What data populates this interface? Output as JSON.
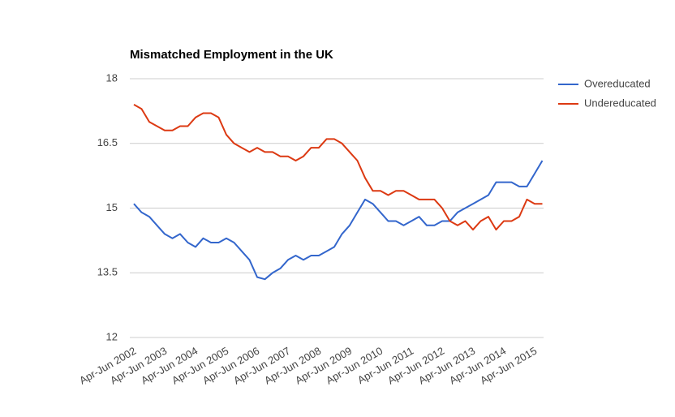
{
  "chart_data": {
    "type": "line",
    "title": "Mismatched Employment in the UK",
    "categories": [
      "Apr-Jun 2002",
      null,
      null,
      null,
      "Apr-Jun 2003",
      null,
      null,
      null,
      "Apr-Jun 2004",
      null,
      null,
      null,
      "Apr-Jun 2005",
      null,
      null,
      null,
      "Apr-Jun 2006",
      null,
      null,
      null,
      "Apr-Jun 2007",
      null,
      null,
      null,
      "Apr-Jun 2008",
      null,
      null,
      null,
      "Apr-Jun 2009",
      null,
      null,
      null,
      "Apr-Jun 2010",
      null,
      null,
      null,
      "Apr-Jun 2011",
      null,
      null,
      null,
      "Apr-Jun 2012",
      null,
      null,
      null,
      "Apr-Jun 2013",
      null,
      null,
      null,
      "Apr-Jun 2014",
      null,
      null,
      null,
      "Apr-Jun 2015",
      null
    ],
    "series": [
      {
        "name": "Overeducated",
        "color": "#3366cc",
        "values": [
          15.1,
          14.9,
          14.8,
          14.6,
          14.4,
          14.3,
          14.4,
          14.2,
          14.1,
          14.3,
          14.2,
          14.2,
          14.3,
          14.2,
          14.0,
          13.8,
          13.4,
          13.35,
          13.5,
          13.6,
          13.8,
          13.9,
          13.8,
          13.9,
          13.9,
          14.0,
          14.1,
          14.4,
          14.6,
          14.9,
          15.2,
          15.1,
          14.9,
          14.7,
          14.7,
          14.6,
          14.7,
          14.8,
          14.6,
          14.6,
          14.7,
          14.7,
          14.9,
          15.0,
          15.1,
          15.2,
          15.3,
          15.6,
          15.6,
          15.6,
          15.5,
          15.5,
          15.8,
          16.1
        ]
      },
      {
        "name": "Undereducated",
        "color": "#dc3912",
        "values": [
          17.4,
          17.3,
          17.0,
          16.9,
          16.8,
          16.8,
          16.9,
          16.9,
          17.1,
          17.2,
          17.2,
          17.1,
          16.7,
          16.5,
          16.4,
          16.3,
          16.4,
          16.3,
          16.3,
          16.2,
          16.2,
          16.1,
          16.2,
          16.4,
          16.4,
          16.6,
          16.6,
          16.5,
          16.3,
          16.1,
          15.7,
          15.4,
          15.4,
          15.3,
          15.4,
          15.4,
          15.3,
          15.2,
          15.2,
          15.2,
          15.0,
          14.7,
          14.6,
          14.7,
          14.5,
          14.7,
          14.8,
          14.5,
          14.7,
          14.7,
          14.8,
          15.2,
          15.1,
          15.1
        ]
      }
    ],
    "ylim": [
      12,
      18
    ],
    "yticks": [
      12,
      13.5,
      15,
      16.5,
      18
    ],
    "grid": true,
    "legend": "right"
  }
}
